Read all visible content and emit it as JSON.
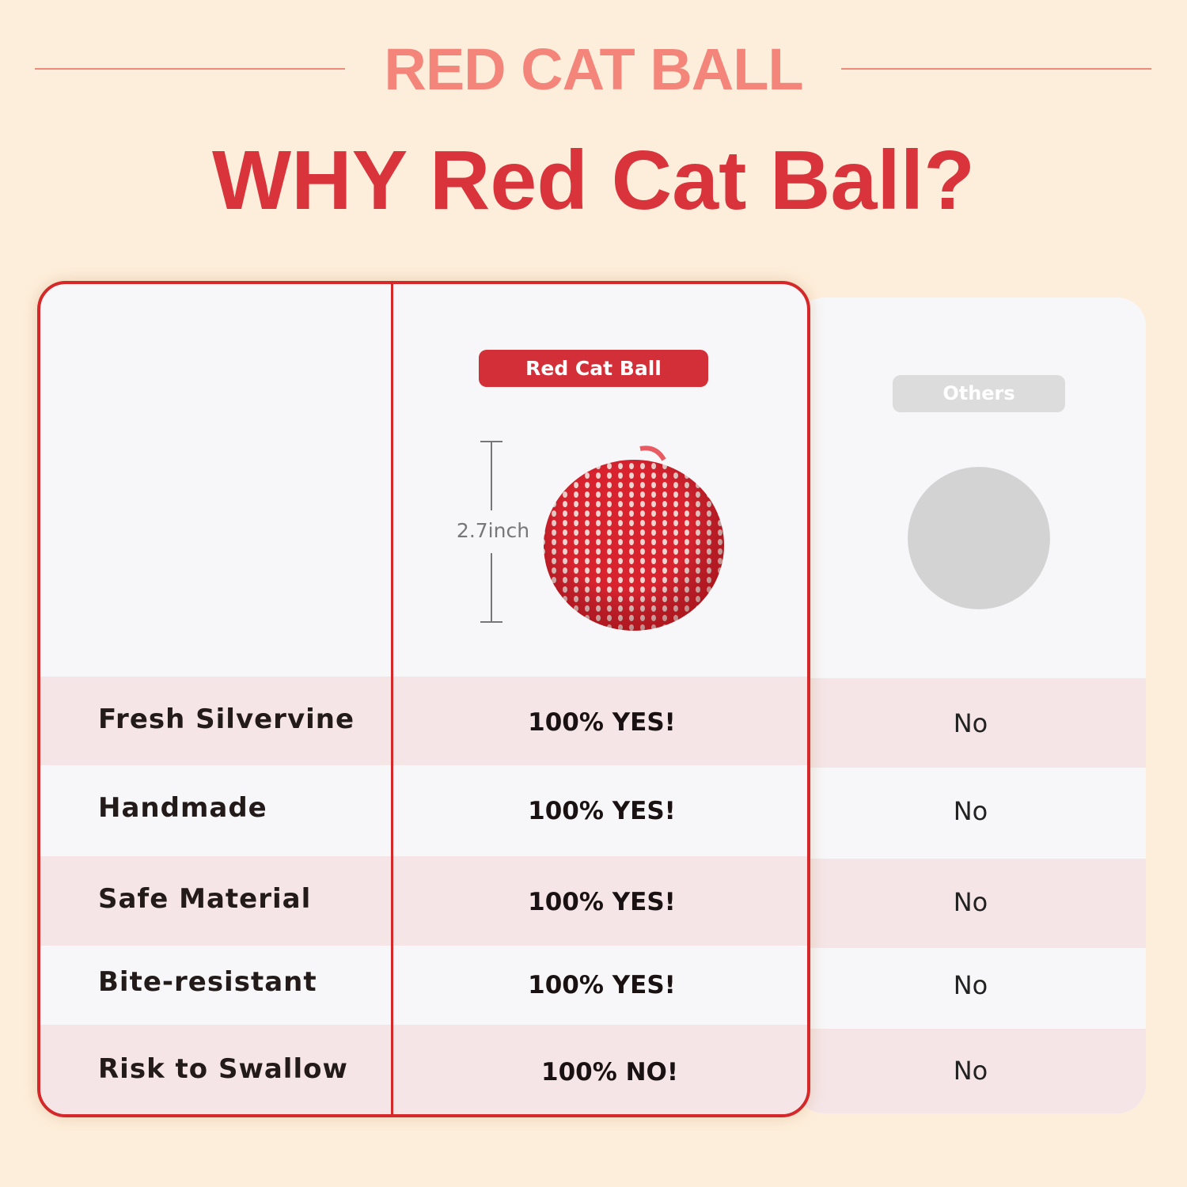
{
  "header": {
    "brand": "RED CAT BALL",
    "headline": "WHY Red Cat Ball?"
  },
  "colors": {
    "background": "#fdeedb",
    "accent": "#d4282a",
    "brand": "#f4857a",
    "row_pink": "#f5e5e6",
    "others_badge": "#dcdcdc"
  },
  "columns": {
    "ours": "Red Cat Ball",
    "others": "Others"
  },
  "product": {
    "size_label": "2.7inch",
    "image": "red knitted cat ball",
    "others_image": "grey circle placeholder"
  },
  "rows": [
    {
      "feature": "Fresh Silvervine",
      "ours": "100% YES!",
      "others": "No"
    },
    {
      "feature": "Handmade",
      "ours": "100% YES!",
      "others": "No"
    },
    {
      "feature": "Safe Material",
      "ours": "100% YES!",
      "others": "No"
    },
    {
      "feature": "Bite-resistant",
      "ours": "100% YES!",
      "others": "No"
    },
    {
      "feature": "Risk to Swallow",
      "ours": "100% NO!",
      "others": "No"
    }
  ]
}
